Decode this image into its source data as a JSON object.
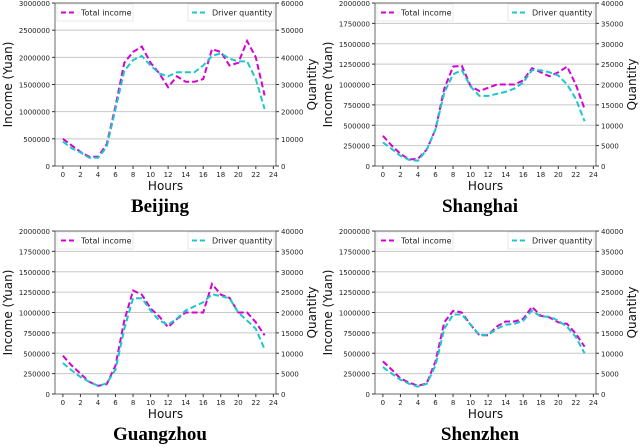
{
  "chart_data": [
    {
      "type": "line",
      "title": "Beijing",
      "xlabel": "Hours",
      "ylabel": "Income (Yuan)",
      "y2label": "Quantity",
      "x": [
        0,
        1,
        2,
        3,
        4,
        5,
        6,
        7,
        8,
        9,
        10,
        11,
        12,
        13,
        14,
        15,
        16,
        17,
        18,
        19,
        20,
        21,
        22,
        23
      ],
      "xticks": [
        "0",
        "2",
        "4",
        "6",
        "8",
        "10",
        "12",
        "14",
        "16",
        "18",
        "20",
        "22",
        "24"
      ],
      "ylim": [
        0,
        3000000
      ],
      "yticks": [
        "0",
        "500000",
        "1000000",
        "1500000",
        "2000000",
        "2500000",
        "3000000"
      ],
      "y2lim": [
        0,
        60000
      ],
      "y2ticks": [
        "0",
        "10000",
        "20000",
        "30000",
        "40000",
        "50000",
        "60000"
      ],
      "legend": [
        "Total income",
        "Driver quantity"
      ],
      "series": [
        {
          "name": "Total income",
          "axis": "left",
          "color": "#d400d4",
          "values": [
            500000,
            380000,
            260000,
            170000,
            170000,
            400000,
            1100000,
            1900000,
            2100000,
            2200000,
            1900000,
            1700000,
            1450000,
            1650000,
            1550000,
            1550000,
            1600000,
            2150000,
            2100000,
            1850000,
            1900000,
            2300000,
            2000000,
            1300000
          ]
        },
        {
          "name": "Driver quantity",
          "axis": "right",
          "color": "#1ac8c8",
          "values": [
            9000,
            6500,
            5000,
            3000,
            3000,
            7000,
            21000,
            35000,
            39000,
            40500,
            37000,
            34000,
            33000,
            34500,
            34500,
            34500,
            37000,
            40500,
            41500,
            39500,
            38500,
            38500,
            32000,
            21000
          ]
        }
      ]
    },
    {
      "type": "line",
      "title": "Shanghai",
      "xlabel": "Hours",
      "ylabel": "Income (Yuan)",
      "y2label": "Quantity",
      "x": [
        0,
        1,
        2,
        3,
        4,
        5,
        6,
        7,
        8,
        9,
        10,
        11,
        12,
        13,
        14,
        15,
        16,
        17,
        18,
        19,
        20,
        21,
        22,
        23
      ],
      "xticks": [
        "0",
        "2",
        "4",
        "6",
        "8",
        "10",
        "12",
        "14",
        "16",
        "18",
        "20",
        "22",
        "24"
      ],
      "ylim": [
        0,
        2000000
      ],
      "yticks": [
        "0",
        "250000",
        "500000",
        "750000",
        "1000000",
        "1250000",
        "1500000",
        "1750000",
        "2000000"
      ],
      "y2lim": [
        0,
        40000
      ],
      "y2ticks": [
        "0",
        "5000",
        "10000",
        "15000",
        "20000",
        "25000",
        "30000",
        "35000",
        "40000"
      ],
      "legend": [
        "Total income",
        "Driver quantity"
      ],
      "series": [
        {
          "name": "Total income",
          "axis": "left",
          "color": "#d400d4",
          "values": [
            370000,
            250000,
            150000,
            80000,
            90000,
            200000,
            450000,
            950000,
            1220000,
            1230000,
            980000,
            920000,
            960000,
            1000000,
            1000000,
            1000000,
            1050000,
            1200000,
            1150000,
            1100000,
            1150000,
            1220000,
            1000000,
            700000
          ]
        },
        {
          "name": "Driver quantity",
          "axis": "right",
          "color": "#1ac8c8",
          "values": [
            5800,
            4200,
            2500,
            1500,
            1300,
            4000,
            9000,
            18000,
            22500,
            23500,
            19500,
            17200,
            17200,
            17700,
            18200,
            19000,
            20500,
            23500,
            23500,
            23000,
            22200,
            20000,
            16500,
            11000
          ]
        }
      ]
    },
    {
      "type": "line",
      "title": "Guangzhou",
      "xlabel": "Hours",
      "ylabel": "Income (Yuan)",
      "y2label": "Quantity",
      "x": [
        0,
        1,
        2,
        3,
        4,
        5,
        6,
        7,
        8,
        9,
        10,
        11,
        12,
        13,
        14,
        15,
        16,
        17,
        18,
        19,
        20,
        21,
        22,
        23
      ],
      "xticks": [
        "0",
        "2",
        "4",
        "6",
        "8",
        "10",
        "12",
        "14",
        "16",
        "18",
        "20",
        "22",
        "24"
      ],
      "ylim": [
        0,
        2000000
      ],
      "yticks": [
        "0",
        "250000",
        "500000",
        "750000",
        "1000000",
        "1250000",
        "1500000",
        "1750000",
        "2000000"
      ],
      "y2lim": [
        0,
        40000
      ],
      "y2ticks": [
        "0",
        "5000",
        "10000",
        "15000",
        "20000",
        "25000",
        "30000",
        "35000",
        "40000"
      ],
      "legend": [
        "Total income",
        "Driver quantity"
      ],
      "series": [
        {
          "name": "Total income",
          "axis": "left",
          "color": "#d400d4",
          "values": [
            470000,
            350000,
            250000,
            150000,
            100000,
            120000,
            350000,
            900000,
            1270000,
            1220000,
            1050000,
            950000,
            820000,
            920000,
            1000000,
            1000000,
            1000000,
            1350000,
            1220000,
            1180000,
            1000000,
            1000000,
            880000,
            720000
          ]
        },
        {
          "name": "Driver quantity",
          "axis": "right",
          "color": "#1ac8c8",
          "values": [
            7600,
            5800,
            4200,
            3000,
            2000,
            2600,
            6000,
            16000,
            23500,
            23500,
            20500,
            18000,
            17000,
            18500,
            20500,
            21500,
            22500,
            24500,
            24000,
            23500,
            20000,
            18000,
            16000,
            11000
          ]
        }
      ]
    },
    {
      "type": "line",
      "title": "Shenzhen",
      "xlabel": "Hours",
      "ylabel": "Income (Yuan)",
      "y2label": "Quantity",
      "x": [
        0,
        1,
        2,
        3,
        4,
        5,
        6,
        7,
        8,
        9,
        10,
        11,
        12,
        13,
        14,
        15,
        16,
        17,
        18,
        19,
        20,
        21,
        22,
        23
      ],
      "xticks": [
        "0",
        "2",
        "4",
        "6",
        "8",
        "10",
        "12",
        "14",
        "16",
        "18",
        "20",
        "22",
        "24"
      ],
      "ylim": [
        0,
        2000000
      ],
      "yticks": [
        "0",
        "250000",
        "500000",
        "750000",
        "1000000",
        "1250000",
        "1500000",
        "1750000",
        "2000000"
      ],
      "y2lim": [
        0,
        40000
      ],
      "y2ticks": [
        "0",
        "5000",
        "10000",
        "15000",
        "20000",
        "25000",
        "30000",
        "35000",
        "40000"
      ],
      "legend": [
        "Total income",
        "Driver quantity"
      ],
      "series": [
        {
          "name": "Total income",
          "axis": "left",
          "color": "#d400d4",
          "values": [
            400000,
            300000,
            190000,
            140000,
            100000,
            130000,
            400000,
            880000,
            1020000,
            1000000,
            850000,
            720000,
            720000,
            830000,
            890000,
            890000,
            920000,
            1070000,
            960000,
            940000,
            880000,
            860000,
            740000,
            580000
          ]
        },
        {
          "name": "Driver quantity",
          "axis": "right",
          "color": "#1ac8c8",
          "values": [
            6600,
            5000,
            3500,
            2500,
            1800,
            2500,
            7000,
            16000,
            19500,
            19500,
            17000,
            14500,
            14500,
            16000,
            17000,
            17200,
            18000,
            20500,
            19000,
            19000,
            18000,
            16500,
            14000,
            10000
          ]
        }
      ]
    }
  ]
}
